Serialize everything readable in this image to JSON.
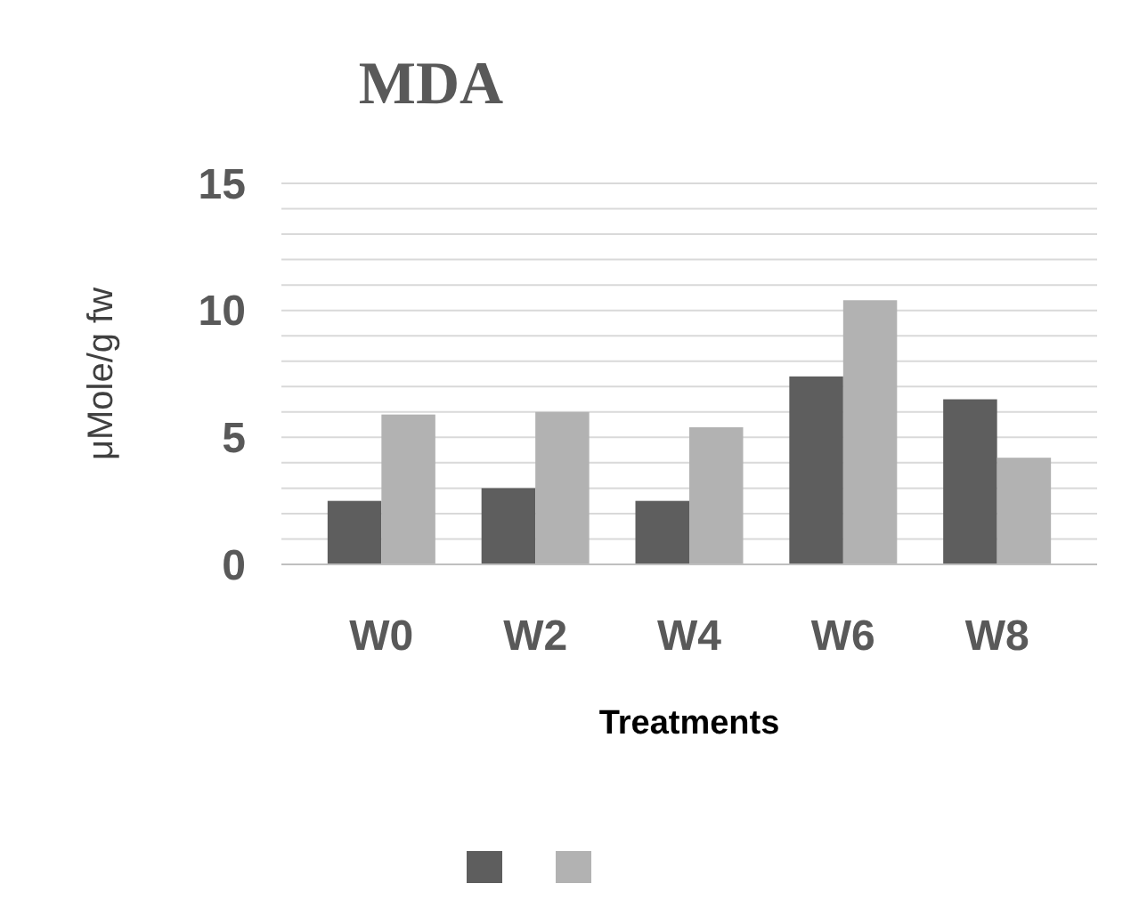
{
  "chart_data": {
    "type": "bar",
    "title": "MDA",
    "xlabel": "Treatments",
    "ylabel": "μMole/g fw",
    "categories": [
      "W0",
      "W2",
      "W4",
      "W6",
      "W8"
    ],
    "series": [
      {
        "color": "#5e5e5e",
        "values": [
          2.5,
          3.0,
          2.5,
          7.4,
          6.5
        ]
      },
      {
        "color": "#b2b2b2",
        "values": [
          5.9,
          6.0,
          5.4,
          10.4,
          4.2
        ]
      }
    ],
    "ylim": [
      0,
      15
    ],
    "yticks": [
      0,
      {
        "value": 1,
        "label": null
      },
      {
        "value": 2,
        "label": null
      },
      {
        "value": 3,
        "label": null
      },
      {
        "value": 4,
        "label": null
      },
      5,
      {
        "value": 6,
        "label": null
      },
      {
        "value": 7,
        "label": null
      },
      {
        "value": 8,
        "label": null
      },
      {
        "value": 9,
        "label": null
      },
      10,
      {
        "value": 11,
        "label": null
      },
      {
        "value": 12,
        "label": null
      },
      {
        "value": 13,
        "label": null
      },
      {
        "value": 14,
        "label": null
      },
      15
    ],
    "grid": "y"
  }
}
